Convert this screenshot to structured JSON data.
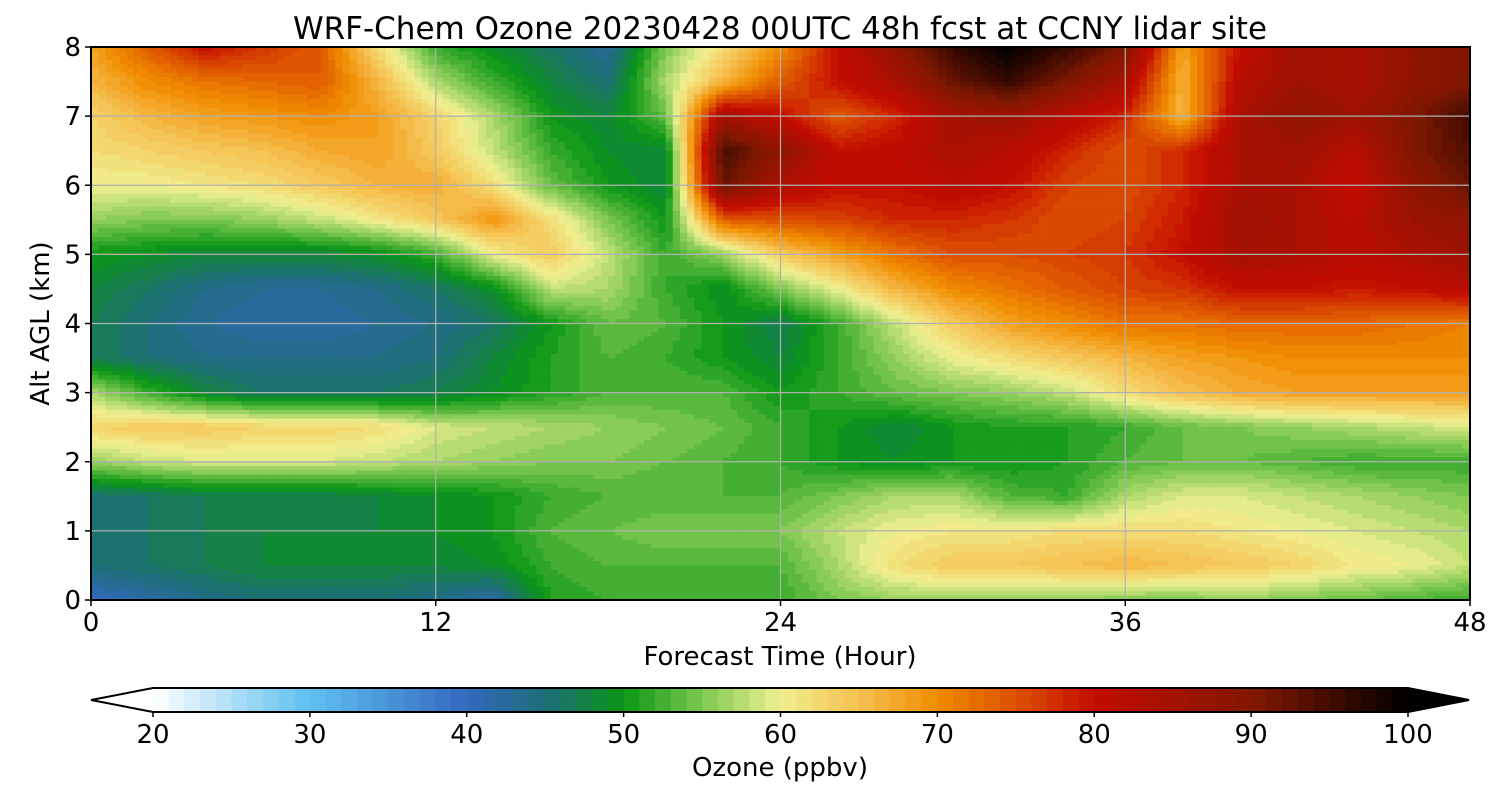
{
  "chart_data": {
    "type": "heatmap",
    "title": "WRF-Chem Ozone  20230428 00UTC 48h fcst at CCNY lidar site",
    "xlabel": "Forecast Time (Hour)",
    "ylabel": "Alt AGL (km)",
    "xlim": [
      0,
      48
    ],
    "ylim": [
      0,
      8
    ],
    "xticks": [
      0,
      12,
      24,
      36,
      48
    ],
    "yticks": [
      0,
      1,
      2,
      3,
      4,
      5,
      6,
      7,
      8
    ],
    "grid": true,
    "x": [
      0,
      2,
      4,
      6,
      8,
      10,
      12,
      14,
      16,
      18,
      20,
      22,
      24,
      26,
      28,
      30,
      32,
      34,
      36,
      38,
      40,
      42,
      44,
      46,
      48
    ],
    "y": [
      0,
      0.5,
      1,
      1.5,
      2,
      2.5,
      3,
      3.5,
      4,
      4.5,
      5,
      5.5,
      6,
      6.5,
      7,
      7.5,
      8
    ],
    "z": [
      [
        40,
        42,
        44,
        45,
        45,
        45,
        44,
        42,
        51,
        52,
        52,
        52,
        52,
        55,
        56,
        56,
        56,
        56,
        55,
        55,
        56,
        55,
        54,
        53,
        52
      ],
      [
        45,
        46,
        47,
        48,
        48,
        48,
        48,
        49,
        52,
        53,
        53,
        53,
        53,
        57,
        62,
        64,
        64,
        65,
        66,
        65,
        64,
        63,
        61,
        60,
        58
      ],
      [
        45,
        46,
        47,
        48,
        48,
        48,
        49,
        50,
        53,
        54,
        55,
        55,
        55,
        58,
        60,
        61,
        61,
        62,
        62,
        62,
        61,
        60,
        59,
        58,
        57
      ],
      [
        45,
        46,
        47,
        47,
        47,
        48,
        49,
        50,
        52,
        53,
        53,
        53,
        53,
        55,
        57,
        57,
        53,
        52,
        57,
        59,
        59,
        58,
        57,
        56,
        55
      ],
      [
        56,
        58,
        59,
        59,
        59,
        58,
        57,
        56,
        55,
        55,
        54,
        53,
        52,
        50,
        49,
        50,
        50,
        51,
        53,
        54,
        54,
        53,
        52,
        52,
        52
      ],
      [
        63,
        64,
        64,
        63,
        63,
        62,
        59,
        58,
        57,
        56,
        55,
        54,
        52,
        50,
        48,
        50,
        51,
        51,
        52,
        54,
        55,
        56,
        57,
        58,
        59
      ],
      [
        57,
        52,
        48,
        46,
        46,
        46,
        47,
        49,
        51,
        53,
        53,
        53,
        50,
        52,
        54,
        55,
        56,
        58,
        62,
        65,
        67,
        68,
        68,
        68,
        68
      ],
      [
        47,
        45,
        44,
        44,
        44,
        44,
        45,
        48,
        51,
        53,
        52,
        50,
        48,
        52,
        56,
        60,
        62,
        64,
        66,
        68,
        69,
        70,
        70,
        70,
        70
      ],
      [
        47,
        45,
        43,
        42,
        42,
        43,
        44,
        46,
        50,
        54,
        53,
        50,
        47,
        52,
        58,
        64,
        68,
        70,
        72,
        72,
        73,
        73,
        73,
        72,
        71
      ],
      [
        48,
        46,
        44,
        43,
        43,
        44,
        46,
        49,
        58,
        57,
        52,
        49,
        55,
        60,
        66,
        70,
        72,
        74,
        76,
        77,
        80,
        80,
        79,
        80,
        82
      ],
      [
        50,
        49,
        48,
        48,
        48,
        49,
        52,
        60,
        64,
        58,
        52,
        56,
        64,
        68,
        72,
        75,
        75,
        76,
        77,
        80,
        85,
        84,
        82,
        84,
        86
      ],
      [
        56,
        55,
        55,
        56,
        58,
        61,
        64,
        69,
        62,
        55,
        50,
        74,
        75,
        76,
        78,
        78,
        77,
        75,
        76,
        79,
        86,
        84,
        82,
        86,
        88
      ],
      [
        60,
        60,
        61,
        62,
        64,
        66,
        67,
        62,
        54,
        50,
        48,
        92,
        84,
        80,
        80,
        82,
        80,
        76,
        75,
        78,
        84,
        84,
        80,
        88,
        92
      ],
      [
        62,
        63,
        64,
        65,
        67,
        68,
        64,
        58,
        52,
        49,
        48,
        95,
        88,
        80,
        81,
        84,
        82,
        78,
        75,
        78,
        84,
        86,
        82,
        90,
        94
      ],
      [
        63,
        66,
        68,
        69,
        70,
        68,
        63,
        57,
        50,
        48,
        54,
        85,
        80,
        74,
        78,
        85,
        86,
        82,
        78,
        66,
        84,
        88,
        86,
        90,
        95
      ],
      [
        66,
        70,
        72,
        73,
        74,
        66,
        57,
        52,
        48,
        45,
        57,
        66,
        74,
        80,
        84,
        92,
        96,
        90,
        84,
        66,
        82,
        86,
        84,
        88,
        90
      ],
      [
        68,
        74,
        80,
        77,
        74,
        62,
        52,
        49,
        46,
        43,
        55,
        62,
        70,
        80,
        88,
        96,
        100,
        96,
        90,
        68,
        80,
        86,
        84,
        88,
        90
      ]
    ],
    "colorbar": {
      "label": "Ozone  (ppbv)",
      "min": 20,
      "max": 100,
      "ticks": [
        20,
        30,
        40,
        50,
        60,
        70,
        80,
        90,
        100
      ],
      "extend": "both",
      "levels": 80,
      "colormap": [
        [
          20,
          "#ffffff"
        ],
        [
          30,
          "#5ec0f0"
        ],
        [
          40,
          "#3468c0"
        ],
        [
          45,
          "#1e6e78"
        ],
        [
          50,
          "#0a9614"
        ],
        [
          55,
          "#7ec850"
        ],
        [
          60,
          "#f0f090"
        ],
        [
          65,
          "#f6c050"
        ],
        [
          70,
          "#f08c00"
        ],
        [
          75,
          "#dc5000"
        ],
        [
          80,
          "#c40c00"
        ],
        [
          90,
          "#821800"
        ],
        [
          100,
          "#000000"
        ]
      ]
    }
  }
}
